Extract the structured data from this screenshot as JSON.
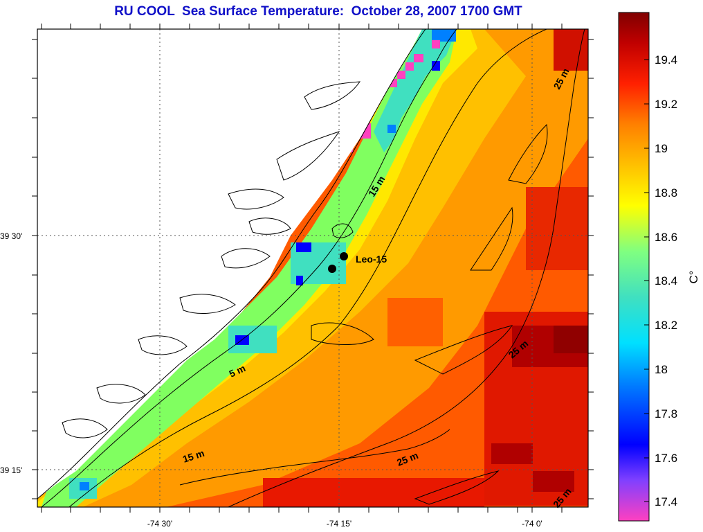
{
  "title": "RU COOL  Sea Surface Temperature:  October 28, 2007 1700 GMT",
  "map": {
    "lat_labels": [
      "39 30'",
      "39 15'"
    ],
    "lon_labels": [
      "-74 30'",
      "-74 15'",
      "-74 0'"
    ],
    "station": {
      "label": "Leo-15"
    },
    "contour_labels": [
      "25 m",
      "15 m",
      "5 m",
      "25 m",
      "15 m",
      "25 m",
      "25 m"
    ]
  },
  "colorbar": {
    "unit": "C°",
    "ticks": [
      "19.4",
      "19.2",
      "19",
      "18.8",
      "18.6",
      "18.4",
      "18.2",
      "18",
      "17.8",
      "17.6",
      "17.4"
    ],
    "range": [
      17.3,
      19.6
    ],
    "colors": [
      "#ff40c0",
      "#8040ff",
      "#0000ff",
      "#0080ff",
      "#00e0ff",
      "#40e0c0",
      "#80ff80",
      "#ffff00",
      "#ffc000",
      "#ff8000",
      "#ff2000",
      "#c00000",
      "#800000"
    ]
  }
}
